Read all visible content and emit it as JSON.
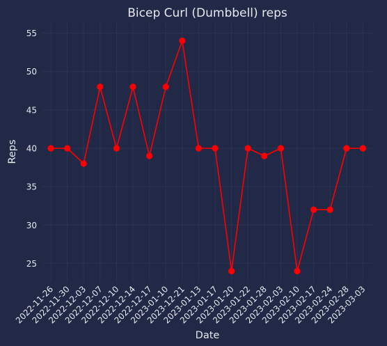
{
  "chart_data": {
    "type": "line",
    "title": "Bicep Curl (Dumbbell) reps",
    "xlabel": "Date",
    "ylabel": "Reps",
    "categories": [
      "2022-11-26",
      "2022-11-30",
      "2022-12-03",
      "2022-12-07",
      "2022-12-10",
      "2022-12-14",
      "2022-12-17",
      "2023-01-10",
      "2023-12-21",
      "2023-01-13",
      "2023-01-17",
      "2023-01-20",
      "2023-01-22",
      "2023-01-28",
      "2023-02-03",
      "2023-02-10",
      "2023-02-17",
      "2023-02-24",
      "2023-02-28",
      "2023-03-03"
    ],
    "series": [
      {
        "values": [
          40,
          40,
          38,
          48,
          40,
          48,
          39,
          48,
          54,
          40,
          40,
          24,
          40,
          39,
          40,
          24,
          32,
          32,
          40,
          40
        ]
      }
    ],
    "yticks": [
      25,
      30,
      35,
      40,
      45,
      50,
      55
    ],
    "ylim": [
      22.5,
      56.5
    ],
    "grid": true,
    "colors": {
      "background": "#212946",
      "grid": "#2A3459",
      "line": "#FF0000",
      "text": "#E6E9F2"
    }
  }
}
